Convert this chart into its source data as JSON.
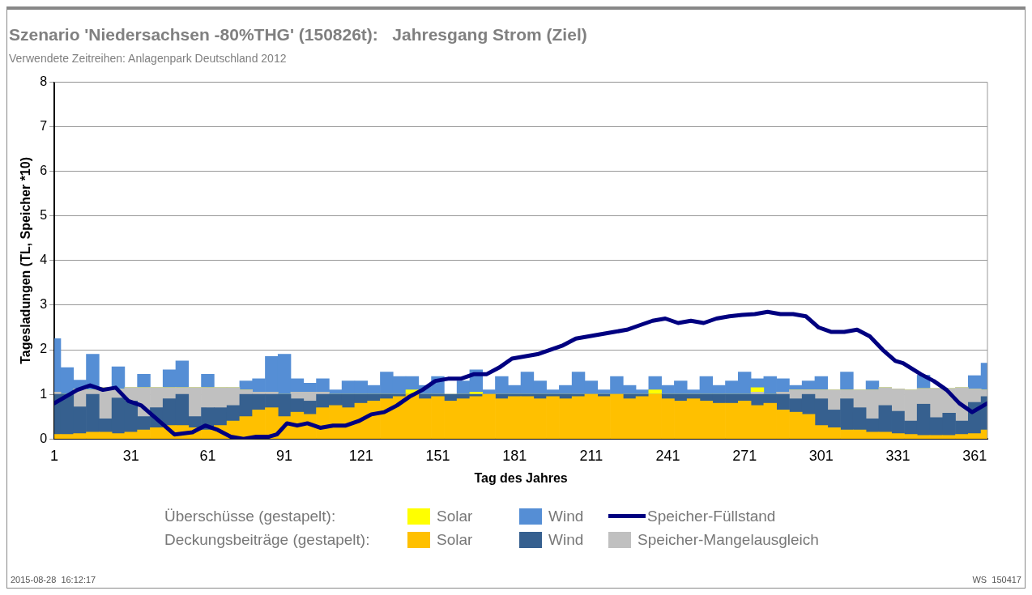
{
  "chart_data": {
    "type": "bar",
    "title": "Szenario 'Niedersachsen -80%THG' (150826t):   Jahresgang Strom (Ziel)",
    "subtitle": "Verwendete Zeitreihen: Anlagenpark Deutschland 2012",
    "xlabel": "Tag des Jahres",
    "ylabel": "Tagesladungen (TL, Speicher *10)",
    "x": [
      1,
      6,
      11,
      16,
      21,
      26,
      31,
      36,
      41,
      46,
      51,
      56,
      61,
      66,
      71,
      76,
      81,
      86,
      91,
      96,
      101,
      106,
      111,
      116,
      121,
      126,
      131,
      136,
      141,
      146,
      151,
      156,
      161,
      166,
      171,
      176,
      181,
      186,
      191,
      196,
      201,
      206,
      211,
      216,
      221,
      226,
      231,
      236,
      241,
      246,
      251,
      256,
      261,
      266,
      271,
      276,
      281,
      286,
      291,
      296,
      301,
      306,
      311,
      316,
      321,
      326,
      331,
      336,
      341,
      346,
      351,
      356,
      361,
      366
    ],
    "stacked": true,
    "series": [
      {
        "name": "Solar",
        "color": "#ffc000",
        "values": [
          0.1,
          0.1,
          0.12,
          0.15,
          0.15,
          0.12,
          0.15,
          0.2,
          0.25,
          0.3,
          0.3,
          0.25,
          0.2,
          0.3,
          0.4,
          0.5,
          0.65,
          0.7,
          0.5,
          0.6,
          0.55,
          0.7,
          0.75,
          0.7,
          0.8,
          0.85,
          0.9,
          0.95,
          1.0,
          0.9,
          0.95,
          0.85,
          0.9,
          0.95,
          1.0,
          0.9,
          0.95,
          0.95,
          0.9,
          0.95,
          0.9,
          0.95,
          1.0,
          0.95,
          1.0,
          0.9,
          0.95,
          1.0,
          0.9,
          0.85,
          0.9,
          0.85,
          0.8,
          0.8,
          0.85,
          0.75,
          0.8,
          0.65,
          0.6,
          0.55,
          0.3,
          0.25,
          0.2,
          0.2,
          0.15,
          0.15,
          0.12,
          0.1,
          0.08,
          0.08,
          0.08,
          0.1,
          0.12,
          0.2
        ]
      },
      {
        "name": "Wind",
        "color": "#36608f",
        "values": [
          0.9,
          0.9,
          0.6,
          0.85,
          0.3,
          0.8,
          0.7,
          0.3,
          0.45,
          0.6,
          0.7,
          0.25,
          0.5,
          0.4,
          0.35,
          0.5,
          0.35,
          0.3,
          0.5,
          0.3,
          0.3,
          0.3,
          0.25,
          0.3,
          0.2,
          0.15,
          0.1,
          0.05,
          0.0,
          0.1,
          0.05,
          0.15,
          0.1,
          0.05,
          0.0,
          0.1,
          0.05,
          0.05,
          0.1,
          0.05,
          0.1,
          0.05,
          0.0,
          0.05,
          0.0,
          0.1,
          0.05,
          0.0,
          0.1,
          0.15,
          0.1,
          0.15,
          0.2,
          0.2,
          0.15,
          0.25,
          0.2,
          0.35,
          0.3,
          0.45,
          0.6,
          0.4,
          0.7,
          0.5,
          0.3,
          0.6,
          0.5,
          0.3,
          0.7,
          0.4,
          0.5,
          0.3,
          0.7,
          0.75
        ]
      },
      {
        "name": "Speicher-Mangelausgleich",
        "color": "#c0c0c0",
        "values": [
          0.05,
          null,
          0.4,
          0.1,
          0.7,
          0.2,
          0.3,
          0.65,
          0.45,
          0.25,
          0.15,
          0.65,
          0.45,
          0.45,
          0.4,
          0.1,
          0.05,
          0.05,
          0,
          0.15,
          0.2,
          0.05,
          0,
          0,
          0,
          0,
          0,
          0,
          0,
          0,
          0,
          0,
          0,
          0,
          0,
          0,
          0,
          0,
          0,
          0,
          0,
          0,
          0,
          0,
          0,
          0,
          0,
          0,
          0,
          0,
          0,
          0,
          0,
          0,
          0,
          0.05,
          0,
          0.05,
          0.2,
          0.1,
          0.2,
          0.45,
          0.2,
          0.4,
          0.65,
          0.4,
          0.5,
          0.7,
          0.35,
          0.65,
          0.55,
          0.75,
          0.3,
          0.15
        ]
      },
      {
        "name": "Solar",
        "color": "#ffff00",
        "values": [
          0,
          0,
          0,
          0,
          0,
          0,
          0,
          0,
          0,
          0,
          0,
          0,
          0,
          0,
          0,
          0,
          0,
          0,
          0,
          0,
          0,
          0,
          0,
          0,
          0,
          0,
          0,
          0,
          0.1,
          0,
          0,
          0,
          0,
          0.05,
          0,
          0,
          0,
          0,
          0,
          0,
          0,
          0,
          0,
          0,
          0,
          0,
          0,
          0.1,
          0,
          0,
          0,
          0,
          0,
          0,
          0,
          0.1,
          0,
          0,
          0,
          0,
          0,
          0,
          0,
          0,
          0,
          0,
          0,
          0,
          0,
          0,
          0,
          0,
          0,
          0
        ]
      },
      {
        "name": "Wind",
        "color": "#558ed5",
        "values": [
          1.2,
          0.6,
          0.2,
          0.8,
          0,
          0.5,
          0,
          0.3,
          0,
          0.4,
          0.6,
          0,
          0.3,
          0,
          0,
          0.2,
          0.3,
          0.8,
          0.9,
          0.3,
          0.2,
          0.3,
          0.1,
          0.3,
          0.3,
          0.2,
          0.5,
          0.4,
          0.3,
          0.2,
          0.4,
          0,
          0.3,
          0.5,
          0.1,
          0.4,
          0.2,
          0.5,
          0.3,
          0.1,
          0.2,
          0.5,
          0.3,
          0.1,
          0.4,
          0.2,
          0.1,
          0.3,
          0.2,
          0.3,
          0.1,
          0.4,
          0.2,
          0.3,
          0.5,
          0.2,
          0.4,
          0.3,
          0.1,
          0.2,
          0.3,
          0,
          0.4,
          0,
          0.2,
          0,
          0,
          0,
          0.3,
          0,
          0,
          0,
          0.3,
          0.6
        ]
      },
      {
        "name": "Speicher-Füllstand",
        "type": "line",
        "color": "#000080",
        "x": [
          1,
          10,
          15,
          20,
          25,
          30,
          35,
          40,
          45,
          48,
          55,
          60,
          65,
          70,
          75,
          80,
          85,
          88,
          92,
          96,
          100,
          105,
          110,
          115,
          120,
          125,
          130,
          135,
          140,
          145,
          150,
          155,
          160,
          165,
          170,
          175,
          180,
          185,
          190,
          195,
          200,
          205,
          210,
          215,
          220,
          225,
          230,
          235,
          240,
          245,
          250,
          255,
          260,
          265,
          270,
          275,
          280,
          285,
          290,
          295,
          300,
          305,
          310,
          315,
          320,
          325,
          330,
          333,
          340,
          345,
          350,
          355,
          360,
          363,
          366
        ],
        "values": [
          0.8,
          1.1,
          1.2,
          1.1,
          1.15,
          0.85,
          0.75,
          0.5,
          0.25,
          0.1,
          0.15,
          0.3,
          0.2,
          0.05,
          0.0,
          0.05,
          0.05,
          0.1,
          0.35,
          0.3,
          0.35,
          0.25,
          0.3,
          0.3,
          0.4,
          0.55,
          0.6,
          0.75,
          0.95,
          1.1,
          1.3,
          1.35,
          1.35,
          1.45,
          1.45,
          1.6,
          1.8,
          1.85,
          1.9,
          2.0,
          2.1,
          2.25,
          2.3,
          2.35,
          2.4,
          2.45,
          2.55,
          2.65,
          2.7,
          2.6,
          2.65,
          2.6,
          2.7,
          2.75,
          2.78,
          2.8,
          2.85,
          2.8,
          2.8,
          2.75,
          2.5,
          2.4,
          2.4,
          2.45,
          2.3,
          2.0,
          1.75,
          1.7,
          1.45,
          1.3,
          1.1,
          0.8,
          0.6,
          0.7,
          0.8
        ]
      }
    ],
    "xlim": [
      1,
      366
    ],
    "xticks": [
      1,
      31,
      61,
      91,
      121,
      151,
      181,
      211,
      241,
      271,
      301,
      331,
      361
    ],
    "ylim": [
      0,
      8
    ],
    "yticks": [
      0,
      1,
      2,
      3,
      4,
      5,
      6,
      7,
      8
    ],
    "grid": "y",
    "legend": "bottom",
    "annotations": [
      "Überschüsse (gestapelt):",
      "Deckungsbeiträge (gestapelt):",
      "2015-08-28  16:12:17",
      "WS  150417"
    ]
  }
}
